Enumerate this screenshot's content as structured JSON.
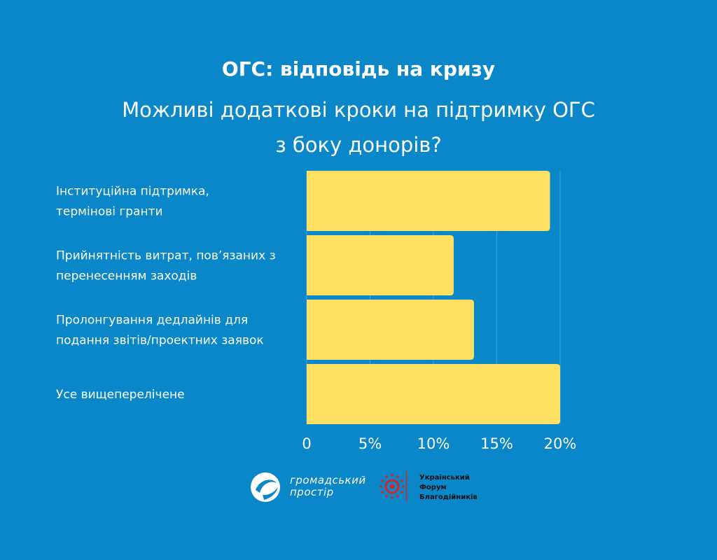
{
  "header": {
    "title": "ОГС: відповідь на кризу",
    "subtitle_lines": [
      "Можливі додаткові кроки на підтримку ОГС",
      "з боку донорів?"
    ]
  },
  "chart_data": {
    "type": "bar",
    "orientation": "horizontal",
    "categories": [
      [
        "Інституційна підтримка,",
        "термінові гранти"
      ],
      [
        "Прийнятність витрат, пов’язаних з",
        "перенесенням заходів"
      ],
      [
        "Пролонгування дедлайнів для",
        "подання звітів/проектних заявок"
      ],
      [
        "Усе вищеперелічене"
      ]
    ],
    "values": [
      19.2,
      11.6,
      13.2,
      20.0
    ],
    "xlim": [
      0,
      20
    ],
    "xticks": [
      0,
      5,
      10,
      15,
      20
    ],
    "xtick_labels": [
      "0",
      "5%",
      "10%",
      "15%",
      "20%"
    ],
    "grid": true,
    "bar_color": "#FFE063",
    "grid_color": "#3FA2D6"
  },
  "logos": {
    "left_lines": [
      "громадський",
      "простір"
    ],
    "right_lines": [
      "Український",
      "Форум",
      "Благодійників"
    ]
  },
  "colors": {
    "background": "#0A87C8",
    "text": "#FFFFFF",
    "bar": "#FFE063",
    "logo_red": "#D7262B"
  }
}
